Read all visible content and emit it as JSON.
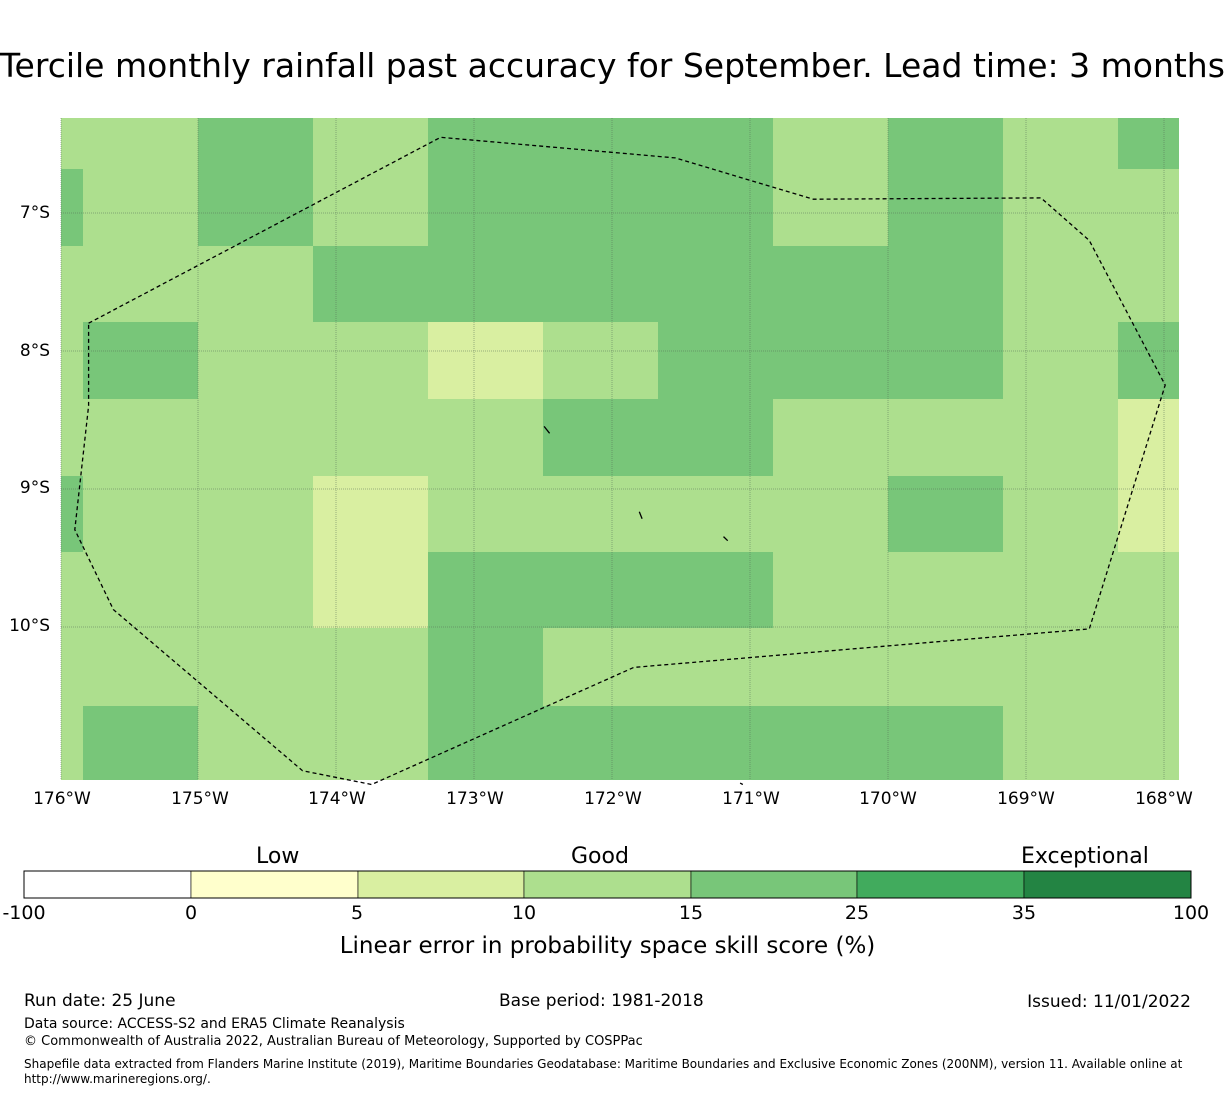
{
  "title": "Tercile monthly rainfall past accuracy for September. Lead time: 3 months",
  "map": {
    "lon_range": [
      176,
      168
    ],
    "lat_range": [
      6.3,
      11.2
    ],
    "x_ticks": [
      "176°W",
      "175°W",
      "174°W",
      "173°W",
      "172°W",
      "171°W",
      "170°W",
      "169°W",
      "168°W"
    ],
    "y_ticks": [
      "7°S",
      "8°S",
      "9°S",
      "10°S"
    ],
    "colors": {
      "c5": "#d9efa1",
      "c10": "#addf8e",
      "c15": "#78c679",
      "eez_line": "#000000",
      "grid_line": "#556b55"
    },
    "eez_boundary": [
      [
        175.8,
        7.8
      ],
      [
        173.25,
        6.45
      ],
      [
        171.55,
        6.6
      ],
      [
        170.55,
        6.9
      ],
      [
        168.9,
        6.89
      ],
      [
        168.55,
        7.2
      ],
      [
        168.0,
        8.25
      ],
      [
        168.55,
        10.02
      ],
      [
        171.85,
        10.3
      ],
      [
        173.75,
        11.15
      ],
      [
        174.25,
        11.05
      ],
      [
        175.62,
        9.88
      ],
      [
        175.9,
        9.3
      ],
      [
        175.8,
        8.4
      ],
      [
        175.8,
        7.8
      ]
    ],
    "islands": [
      [
        [
          172.5,
          8.55
        ],
        [
          172.46,
          8.6
        ]
      ],
      [
        [
          171.81,
          9.17
        ],
        [
          171.79,
          9.22
        ]
      ],
      [
        [
          171.2,
          9.35
        ],
        [
          171.17,
          9.38
        ]
      ],
      [
        [
          171.08,
          11.14
        ],
        [
          171.06,
          11.15
        ]
      ]
    ]
  },
  "legend": {
    "categories": [
      "Low",
      "Good",
      "Exceptional"
    ],
    "ticks": [
      "-100",
      "0",
      "5",
      "10",
      "15",
      "25",
      "35",
      "100"
    ],
    "colors": [
      "#ffffff",
      "#ffffcc",
      "#d9efa1",
      "#addf8e",
      "#78c679",
      "#41ab5d",
      "#238443"
    ],
    "label": "Linear error in probability space skill score (%)"
  },
  "footer": {
    "run_date": "Run date: 25 June",
    "base_period": "Base period: 1981-2018",
    "issued": "Issued: 11/01/2022",
    "data_source": "Data source: ACCESS-S2 and ERA5 Climate Reanalysis",
    "copyright": "© Commonwealth of Australia 2022, Australian Bureau of Meteorology, Supported by COSPPac",
    "shapefile_note": "Shapefile data extracted from Flanders Marine Institute (2019), Maritime Boundaries Geodatabase: Maritime Boundaries and Exclusive Economic Zones (200NM), version 11. Available online at http://www.marineregions.org/."
  }
}
